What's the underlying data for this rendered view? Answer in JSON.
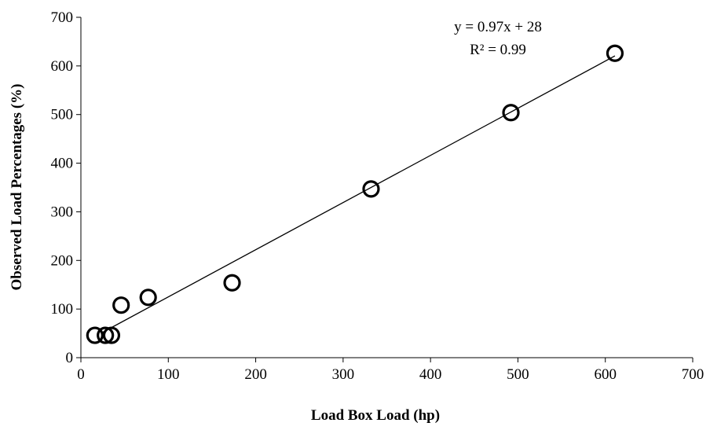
{
  "chart_data": {
    "type": "scatter",
    "title": "",
    "xlabel": "Load Box Load (hp)",
    "ylabel": "Observed Load Percentages (%)",
    "xlim": [
      0,
      700
    ],
    "ylim": [
      0,
      700
    ],
    "xticks": [
      "0",
      "100",
      "200",
      "300",
      "400",
      "500",
      "600",
      "700"
    ],
    "yticks": [
      "0",
      "100",
      "200",
      "300",
      "400",
      "500",
      "600",
      "700"
    ],
    "grid": false,
    "legend": "none",
    "marker_color": "#000000",
    "series": [
      {
        "points": [
          {
            "x": 16,
            "y": 46
          },
          {
            "x": 28,
            "y": 46
          },
          {
            "x": 35,
            "y": 46
          },
          {
            "x": 46,
            "y": 108
          },
          {
            "x": 77,
            "y": 124
          },
          {
            "x": 173,
            "y": 154
          },
          {
            "x": 332,
            "y": 347
          },
          {
            "x": 492,
            "y": 504
          },
          {
            "x": 611,
            "y": 626
          }
        ]
      }
    ],
    "trendline": {
      "slope": 0.97,
      "intercept": 28,
      "x_from": 23,
      "x_to": 611,
      "equation": "y = 0.97x + 28",
      "r_squared": "R² = 0.99"
    }
  }
}
